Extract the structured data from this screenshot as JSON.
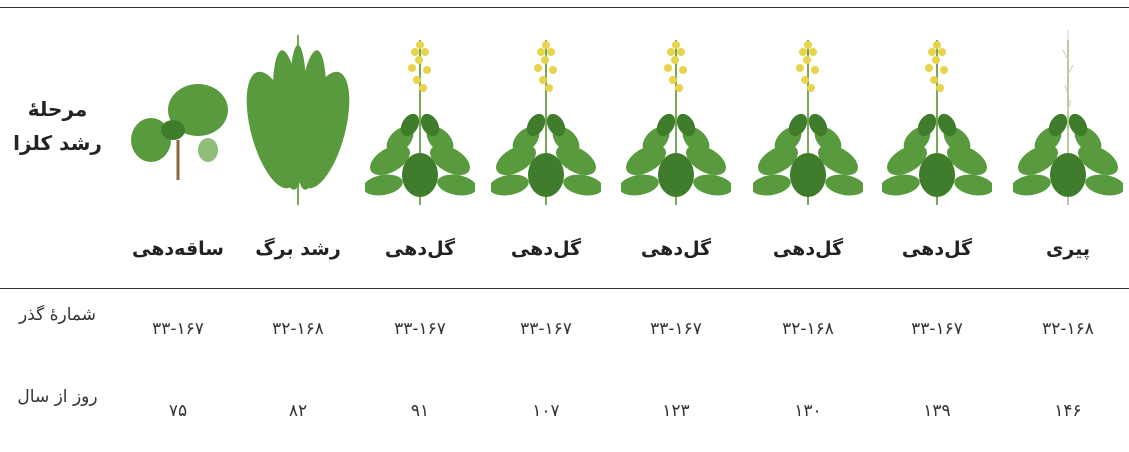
{
  "table": {
    "row_headers": [
      "مرحلهٔ رشد کلزا",
      "شمارهٔ گذر",
      "روز از سال"
    ],
    "columns": [
      {
        "stage": "ساقه‌دهی",
        "pass": "۳۳-۱۶۷",
        "day": "۷۵"
      },
      {
        "stage": "رشد برگ",
        "pass": "۳۲-۱۶۸",
        "day": "۸۲"
      },
      {
        "stage": "گل‌دهی",
        "pass": "۳۳-۱۶۷",
        "day": "۹۱"
      },
      {
        "stage": "گل‌دهی",
        "pass": "۳۳-۱۶۷",
        "day": "۱۰۷"
      },
      {
        "stage": "گل‌دهی",
        "pass": "۳۳-۱۶۷",
        "day": "۱۲۳"
      },
      {
        "stage": "گل‌دهی",
        "pass": "۳۲-۱۶۸",
        "day": "۱۳۰"
      },
      {
        "stage": "گل‌دهی",
        "pass": "۳۳-۱۶۷",
        "day": "۱۳۹"
      },
      {
        "stage": "پیری",
        "pass": "۳۲-۱۶۸",
        "day": "۱۴۶"
      }
    ]
  }
}
